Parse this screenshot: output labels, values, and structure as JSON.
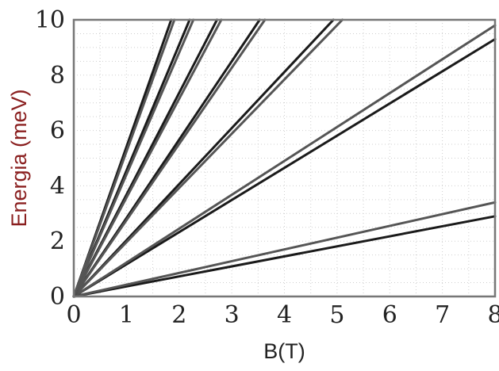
{
  "chart_data": {
    "type": "line",
    "title": "",
    "xlabel": "B(T)",
    "ylabel": "Energia (meV)",
    "xlim": [
      0,
      8
    ],
    "ylim": [
      0,
      10
    ],
    "x_ticks": [
      "0",
      "1",
      "2",
      "3",
      "4",
      "5",
      "6",
      "7",
      "8"
    ],
    "y_ticks": [
      "0",
      "2",
      "4",
      "6",
      "8",
      "10"
    ],
    "grid": false,
    "legend": "none",
    "series": [
      {
        "x": [
          0,
          8
        ],
        "y": [
          0,
          2.9
        ],
        "color": "#1a1a1a"
      },
      {
        "x": [
          0,
          8
        ],
        "y": [
          0,
          3.4
        ],
        "color": "#555555"
      },
      {
        "x": [
          0,
          8
        ],
        "y": [
          0,
          9.3
        ],
        "color": "#1a1a1a"
      },
      {
        "x": [
          0,
          8
        ],
        "y": [
          0,
          9.8
        ],
        "color": "#555555"
      },
      {
        "x": [
          0,
          4.93
        ],
        "y": [
          0,
          10
        ],
        "color": "#1a1a1a"
      },
      {
        "x": [
          0,
          5.1
        ],
        "y": [
          0,
          10
        ],
        "color": "#555555"
      },
      {
        "x": [
          0,
          3.53
        ],
        "y": [
          0,
          10
        ],
        "color": "#1a1a1a"
      },
      {
        "x": [
          0,
          3.63
        ],
        "y": [
          0,
          10
        ],
        "color": "#555555"
      },
      {
        "x": [
          0,
          2.72
        ],
        "y": [
          0,
          10
        ],
        "color": "#1a1a1a"
      },
      {
        "x": [
          0,
          2.8
        ],
        "y": [
          0,
          10
        ],
        "color": "#555555"
      },
      {
        "x": [
          0,
          2.2
        ],
        "y": [
          0,
          10
        ],
        "color": "#1a1a1a"
      },
      {
        "x": [
          0,
          2.27
        ],
        "y": [
          0,
          10
        ],
        "color": "#555555"
      },
      {
        "x": [
          0,
          1.85
        ],
        "y": [
          0,
          10
        ],
        "color": "#1a1a1a"
      },
      {
        "x": [
          0,
          1.91
        ],
        "y": [
          0,
          10
        ],
        "color": "#555555"
      }
    ]
  }
}
